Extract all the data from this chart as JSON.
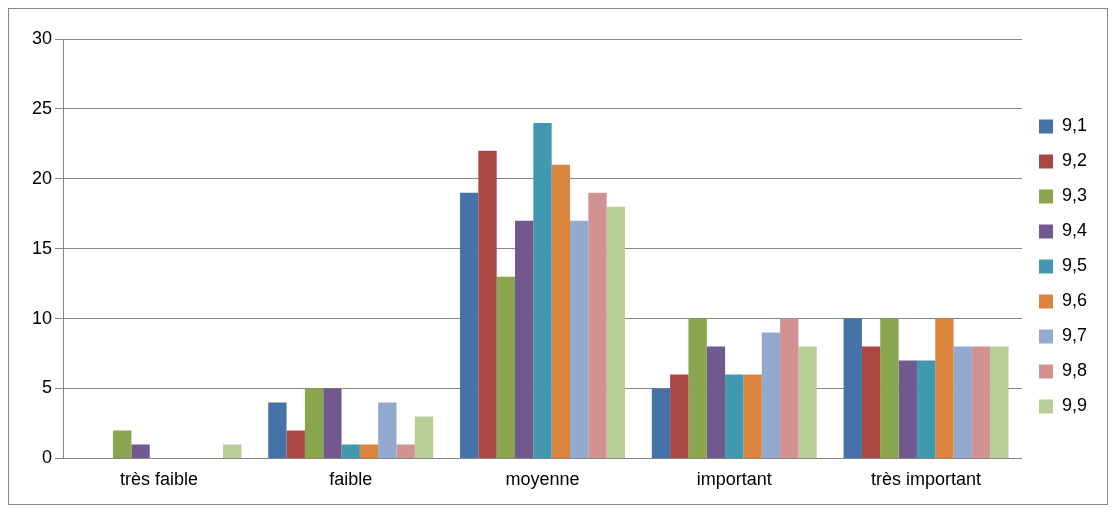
{
  "chart_data": {
    "type": "bar",
    "categories": [
      "très faible",
      "faible",
      "moyenne",
      "important",
      "très important"
    ],
    "series": [
      {
        "name": "9,1",
        "color": "#4572a7",
        "values": [
          0,
          4,
          19,
          5,
          10
        ]
      },
      {
        "name": "9,2",
        "color": "#aa4643",
        "values": [
          0,
          2,
          22,
          6,
          8
        ]
      },
      {
        "name": "9,3",
        "color": "#89a54e",
        "values": [
          2,
          5,
          13,
          10,
          10
        ]
      },
      {
        "name": "9,4",
        "color": "#71588f",
        "values": [
          1,
          5,
          17,
          8,
          7
        ]
      },
      {
        "name": "9,5",
        "color": "#4198af",
        "values": [
          0,
          1,
          24,
          6,
          7
        ]
      },
      {
        "name": "9,6",
        "color": "#db843d",
        "values": [
          0,
          1,
          21,
          6,
          10
        ]
      },
      {
        "name": "9,7",
        "color": "#93a9cf",
        "values": [
          0,
          4,
          17,
          9,
          8
        ]
      },
      {
        "name": "9,8",
        "color": "#d19392",
        "values": [
          0,
          1,
          19,
          10,
          8
        ]
      },
      {
        "name": "9,9",
        "color": "#b9cd96",
        "values": [
          1,
          3,
          18,
          8,
          8
        ]
      }
    ],
    "ylim": [
      0,
      30
    ],
    "yticks": [
      0,
      5,
      10,
      15,
      20,
      25,
      30
    ],
    "grid": "y",
    "legend": "right"
  }
}
